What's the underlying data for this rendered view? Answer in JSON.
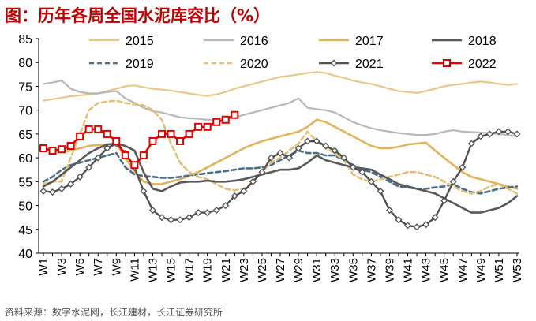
{
  "title": "图：历年各周全国水泥库容比（%）",
  "source": "资料来源：数字水泥网，长江建材，长江证券研究所",
  "colors": {
    "title": "#c00000",
    "2015": "#e6c98a",
    "2016": "#b8b8b8",
    "2017": "#e0b45c",
    "2018": "#595959",
    "2019": "#4a6e8a",
    "2020": "#e3c07a",
    "2021": "#505050",
    "2022": "#e00000"
  },
  "chart_data": {
    "type": "line",
    "title": "图：历年各周全国水泥库容比（%）",
    "xlabel": "",
    "ylabel": "",
    "ylim": [
      40,
      85
    ],
    "yticks": [
      40,
      45,
      50,
      55,
      60,
      65,
      70,
      75,
      80,
      85
    ],
    "x_tick_labels": [
      "W1",
      "W3",
      "W5",
      "W7",
      "W9",
      "W11",
      "W13",
      "W15",
      "W17",
      "W19",
      "W21",
      "W23",
      "W25",
      "W27",
      "W29",
      "W31",
      "W33",
      "W35",
      "W37",
      "W39",
      "W41",
      "W43",
      "W45",
      "W47",
      "W49",
      "W51",
      "W53"
    ],
    "weeks": 53,
    "grid": false,
    "legend_position": "top",
    "series": [
      {
        "name": "2015",
        "style": "solid",
        "marker": "none",
        "values": [
          72,
          72.3,
          72.6,
          72.9,
          73.1,
          73.3,
          73.5,
          74,
          74.5,
          75,
          75.2,
          74.8,
          74.5,
          74.3,
          74.1,
          73.8,
          73.5,
          73.2,
          73,
          73.3,
          73.8,
          74.5,
          75,
          75.5,
          76,
          76.5,
          77,
          77.2,
          77.5,
          77.8,
          78,
          77.8,
          77.2,
          76.8,
          76.2,
          75.8,
          75.5,
          75,
          74.5,
          74,
          73.8,
          73.6,
          74,
          74.5,
          75,
          75.3,
          75.5,
          75.8,
          76,
          75.8,
          75.5,
          75.3,
          75.5
        ]
      },
      {
        "name": "2016",
        "style": "solid",
        "marker": "none",
        "values": [
          75.5,
          75.8,
          76.2,
          74.5,
          73.8,
          73.5,
          73.5,
          73.8,
          74,
          72.5,
          71.5,
          70.5,
          69.8,
          69.5,
          69,
          68.5,
          68.3,
          68.2,
          68,
          68,
          68.2,
          68.5,
          69,
          69.5,
          70,
          70.5,
          71,
          71.5,
          72.5,
          70.5,
          70.2,
          70,
          69.5,
          68.5,
          67.5,
          66.8,
          66.2,
          65.8,
          65.5,
          65.2,
          65,
          64.8,
          64.8,
          65,
          65.5,
          65.8,
          65.5,
          65.4,
          65.3,
          65.2,
          65,
          64.8,
          64.5
        ]
      },
      {
        "name": "2017",
        "style": "solid",
        "marker": "none",
        "values": [
          62,
          61.5,
          61.2,
          61.5,
          62,
          62.5,
          62.7,
          62.8,
          63,
          60,
          57,
          55,
          54.5,
          54.5,
          55,
          55.5,
          56.2,
          57,
          58,
          59,
          60,
          61,
          62,
          62.8,
          63.5,
          64,
          64.5,
          65,
          65.5,
          66.5,
          68,
          67.5,
          66.5,
          65.5,
          64.5,
          63.5,
          62.5,
          62,
          62,
          62.3,
          62.8,
          63,
          63.2,
          61.5,
          60,
          58.5,
          57,
          56,
          55.5,
          55,
          54.5,
          54,
          53.5
        ]
      },
      {
        "name": "2018",
        "style": "solid",
        "marker": "none",
        "values": [
          54,
          55,
          56.5,
          58,
          59.5,
          61,
          62,
          62.8,
          63,
          62.5,
          61.5,
          57,
          53.5,
          53,
          54,
          54.8,
          55,
          55,
          55.2,
          55,
          55,
          55.2,
          55.5,
          56,
          56.5,
          57,
          57.5,
          57.5,
          57.8,
          59,
          60.5,
          59.5,
          59,
          58.5,
          58,
          57.8,
          57.5,
          56.5,
          55.5,
          54.5,
          54,
          53.5,
          53,
          52.5,
          51.5,
          50.5,
          49.5,
          48.5,
          48.5,
          49,
          49.5,
          50.5,
          52
        ]
      },
      {
        "name": "2019",
        "style": "dashed",
        "marker": "none",
        "values": [
          55,
          56,
          57.5,
          58.5,
          59,
          59.5,
          60,
          60.5,
          61,
          58,
          56.5,
          56.2,
          56,
          55.8,
          55.8,
          56,
          56.3,
          56.5,
          56.8,
          57,
          57.2,
          57.5,
          57.8,
          57.8,
          58,
          58.5,
          59.5,
          60.5,
          61.5,
          61,
          61,
          60.5,
          60.5,
          59.5,
          58.5,
          57.5,
          57,
          56,
          55,
          54,
          53.8,
          53.5,
          53.5,
          53.8,
          54,
          54.5,
          53.5,
          52.8,
          52.5,
          53,
          53.5,
          53.8,
          54
        ]
      },
      {
        "name": "2020",
        "style": "dashed",
        "marker": "none",
        "values": [
          54.5,
          55,
          55,
          60,
          65,
          70,
          71.5,
          71.8,
          72,
          71.5,
          71.2,
          71,
          70,
          68,
          63,
          59,
          57,
          56,
          55.5,
          54.5,
          53.5,
          53.2,
          53.5,
          55,
          57,
          59,
          60,
          61.5,
          63,
          65.5,
          63.5,
          62,
          61,
          59.5,
          56.5,
          55.5,
          55,
          55.5,
          56,
          56.5,
          57,
          57,
          56.5,
          56,
          55,
          54,
          53,
          52.5,
          53,
          54,
          54.5,
          53.5,
          52.5
        ]
      },
      {
        "name": "2021",
        "style": "solid",
        "marker": "diamond",
        "values": [
          53,
          52.8,
          53.5,
          54.5,
          56,
          58,
          60,
          62,
          63,
          61,
          58,
          53,
          49,
          47.5,
          47,
          47,
          47.5,
          48.5,
          48.5,
          49,
          50,
          52,
          53,
          55,
          57,
          60,
          61,
          60,
          62,
          63.5,
          63.5,
          62.5,
          61.5,
          60,
          58,
          57,
          55,
          53,
          49,
          47,
          45.8,
          45.5,
          46,
          47.5,
          51,
          55,
          58,
          63,
          64.5,
          65,
          65.5,
          65.5,
          65
        ]
      },
      {
        "name": "2022",
        "style": "solid",
        "marker": "square",
        "values": [
          62,
          61.5,
          61.8,
          62.5,
          64.5,
          66,
          66,
          65,
          63.5,
          60.5,
          58.5,
          60.5,
          63.5,
          65,
          65,
          63.5,
          65,
          66.5,
          66.5,
          67.5,
          68,
          69
        ]
      }
    ]
  }
}
